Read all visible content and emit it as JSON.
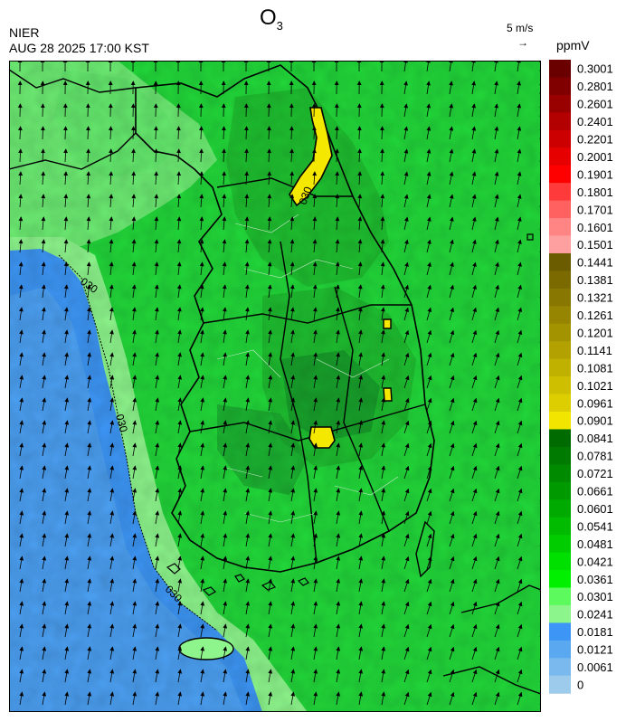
{
  "header": {
    "title_main": "O",
    "title_sub": "3",
    "agency": "NIER",
    "timestamp": "AUG 28 2025 17:00 KST",
    "wind_scale": "5 m/s",
    "wind_scale_arrow": "→",
    "unit": "ppmV"
  },
  "map": {
    "contour_label": "030",
    "colors": {
      "sea_low": "#3d96f5",
      "sea_light": "#5aa9f0",
      "coast_light": "#8df58c",
      "land_green": "#22d83a",
      "land_mid": "#1fb82e",
      "land_dark": "#16902a",
      "hotspot": "#f5e800",
      "border": "#000000"
    }
  },
  "legend": {
    "labels": [
      "0.3001",
      "0.2801",
      "0.2601",
      "0.2401",
      "0.2201",
      "0.2001",
      "0.1901",
      "0.1801",
      "0.1701",
      "0.1601",
      "0.1501",
      "0.1441",
      "0.1381",
      "0.1321",
      "0.1261",
      "0.1201",
      "0.1141",
      "0.1081",
      "0.1021",
      "0.0961",
      "0.0901",
      "0.0841",
      "0.0781",
      "0.0721",
      "0.0661",
      "0.0601",
      "0.0541",
      "0.0481",
      "0.0421",
      "0.0361",
      "0.0301",
      "0.0241",
      "0.0181",
      "0.0121",
      "0.0061",
      "0"
    ],
    "colors": [
      "#6b0000",
      "#800000",
      "#990000",
      "#b30000",
      "#cc0000",
      "#e60000",
      "#ff0000",
      "#ff3a3a",
      "#ff6060",
      "#ff8585",
      "#ffa0a0",
      "#6b5c00",
      "#7a6a00",
      "#887700",
      "#968500",
      "#a49300",
      "#b2a100",
      "#c0b000",
      "#cebf00",
      "#dcce00",
      "#f2e600",
      "#006b00",
      "#007a00",
      "#008a00",
      "#009a00",
      "#00aa00",
      "#00bb00",
      "#00cc00",
      "#00e000",
      "#00f000",
      "#5dfa5d",
      "#8cf58c",
      "#3d96f5",
      "#5aa9f0",
      "#7ab9ee",
      "#9ccbec"
    ]
  }
}
